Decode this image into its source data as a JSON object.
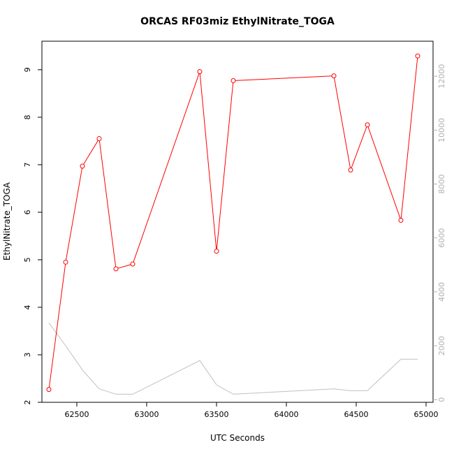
{
  "chart_data": {
    "type": "line",
    "title": "ORCAS RF03miz EthylNitrate_TOGA",
    "xlabel": "UTC Seconds",
    "ylabel": "EthylNitrate_TOGA",
    "xlim": [
      62250,
      65050
    ],
    "ylim": [
      2,
      9.6
    ],
    "y2lim": [
      -100,
      13300
    ],
    "x_ticks": [
      62500,
      63000,
      63500,
      64000,
      64500,
      65000
    ],
    "y_ticks": [
      2,
      3,
      4,
      5,
      6,
      7,
      8,
      9
    ],
    "y2_ticks": [
      0,
      2000,
      4000,
      6000,
      8000,
      10000,
      12000
    ],
    "grid": false,
    "colors": {
      "primary": "#ff0000",
      "secondary": "#c0c0c0",
      "axes": "#000000",
      "right_axis": "#b0b0b0"
    },
    "series": [
      {
        "axis": "left",
        "x": [
          62300,
          62420,
          62540,
          62660,
          62780,
          62900,
          63380,
          63500,
          63620,
          64340,
          64460,
          64580,
          64820,
          64940
        ],
        "values": [
          2.27,
          4.95,
          6.97,
          7.55,
          4.81,
          4.91,
          8.96,
          5.18,
          8.77,
          8.87,
          6.89,
          7.84,
          5.83,
          9.29
        ]
      },
      {
        "axis": "right",
        "x": [
          62300,
          62420,
          62540,
          62660,
          62780,
          62900,
          63380,
          63500,
          63620,
          64340,
          64460,
          64580,
          64820,
          64940
        ],
        "values": [
          2850,
          2000,
          1100,
          400,
          200,
          200,
          1450,
          550,
          200,
          400,
          330,
          330,
          1500,
          1500
        ]
      }
    ]
  }
}
